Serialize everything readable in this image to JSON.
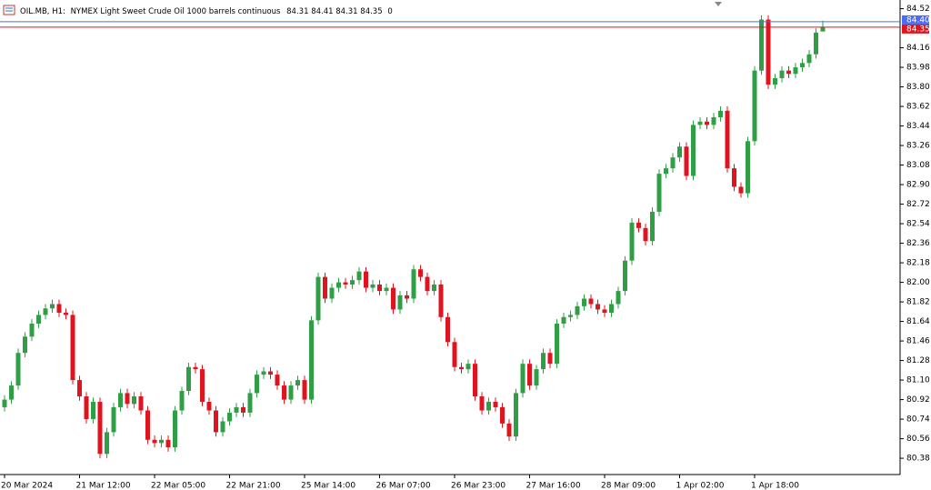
{
  "header": {
    "symbol": "OIL.MB, H1:",
    "description": "NYMEX Light Sweet Crude Oil 1000 barrels continuous",
    "tick_volume": 0
  },
  "chart_data": {
    "type": "candlestick",
    "bull_color": "#2f9e44",
    "bear_color": "#e0141e",
    "ylim": [
      80.23,
      84.6
    ],
    "yticks": [
      {
        "value": 84.52,
        "label": "84.52"
      },
      {
        "value": 84.16,
        "label": "84.16"
      },
      {
        "value": 83.98,
        "label": "83.98"
      },
      {
        "value": 83.8,
        "label": "83.80"
      },
      {
        "value": 83.62,
        "label": "83.62"
      },
      {
        "value": 83.44,
        "label": "83.44"
      },
      {
        "value": 83.26,
        "label": "83.26"
      },
      {
        "value": 83.08,
        "label": "83.08"
      },
      {
        "value": 82.9,
        "label": "82.90"
      },
      {
        "value": 82.72,
        "label": "82.72"
      },
      {
        "value": 82.54,
        "label": "82.54"
      },
      {
        "value": 82.36,
        "label": "82.36"
      },
      {
        "value": 82.18,
        "label": "82.18"
      },
      {
        "value": 82,
        "label": "82.00"
      },
      {
        "value": 81.82,
        "label": "81.82"
      },
      {
        "value": 81.64,
        "label": "81.64"
      },
      {
        "value": 81.46,
        "label": "81.46"
      },
      {
        "value": 81.28,
        "label": "81.28"
      },
      {
        "value": 81.1,
        "label": "81.10"
      },
      {
        "value": 80.92,
        "label": "80.92"
      },
      {
        "value": 80.74,
        "label": "80.74"
      },
      {
        "value": 80.56,
        "label": "80.56"
      },
      {
        "value": 80.38,
        "label": "80.38"
      }
    ],
    "ask": {
      "value": 84.4,
      "label": "84.40",
      "color": "#4a6cf7"
    },
    "bid": {
      "value": 84.35,
      "label": "84.35",
      "color": "#e0141e"
    },
    "categories": [
      "20 Mar 2024",
      null,
      null,
      null,
      null,
      null,
      null,
      null,
      null,
      null,
      null,
      "21 Mar 12:00",
      null,
      null,
      null,
      null,
      null,
      null,
      null,
      null,
      null,
      null,
      "22 Mar 05:00",
      null,
      null,
      null,
      null,
      null,
      null,
      null,
      null,
      null,
      null,
      "22 Mar 21:00",
      null,
      null,
      null,
      null,
      null,
      null,
      null,
      null,
      null,
      null,
      "25 Mar 14:00",
      null,
      null,
      null,
      null,
      null,
      null,
      null,
      null,
      null,
      null,
      "26 Mar 07:00",
      null,
      null,
      null,
      null,
      null,
      null,
      null,
      null,
      null,
      null,
      "26 Mar 23:00",
      null,
      null,
      null,
      null,
      null,
      null,
      null,
      null,
      null,
      null,
      "27 Mar 16:00",
      null,
      null,
      null,
      null,
      null,
      null,
      null,
      null,
      null,
      null,
      "28 Mar 09:00",
      null,
      null,
      null,
      null,
      null,
      null,
      null,
      null,
      null,
      null,
      "1 Apr 02:00",
      null,
      null,
      null,
      null,
      null,
      null,
      null,
      null,
      null,
      null,
      "1 Apr 18:00",
      null,
      null,
      null,
      null,
      null,
      null,
      null,
      null,
      null,
      null
    ],
    "open": [
      80.85,
      80.92,
      81.05,
      81.35,
      81.5,
      81.62,
      81.7,
      81.76,
      81.8,
      81.72,
      81.7,
      81.1,
      80.95,
      80.74,
      80.9,
      80.42,
      80.62,
      80.85,
      80.98,
      80.88,
      80.95,
      80.82,
      80.55,
      80.52,
      80.55,
      80.48,
      80.82,
      81.0,
      81.22,
      81.2,
      80.9,
      80.82,
      80.62,
      80.72,
      80.8,
      80.85,
      80.8,
      80.98,
      81.15,
      81.18,
      81.15,
      81.05,
      80.92,
      81.05,
      81.1,
      80.92,
      81.65,
      82.05,
      81.85,
      81.95,
      82.0,
      81.98,
      82.02,
      82.1,
      81.95,
      81.98,
      81.92,
      81.95,
      81.75,
      81.88,
      81.85,
      82.12,
      82.05,
      81.92,
      81.98,
      81.68,
      81.45,
      81.22,
      81.2,
      81.25,
      80.95,
      80.82,
      80.9,
      80.85,
      80.7,
      80.58,
      80.98,
      81.25,
      81.05,
      81.2,
      81.35,
      81.25,
      81.62,
      81.68,
      81.7,
      81.78,
      81.85,
      81.8,
      81.75,
      81.72,
      81.8,
      81.92,
      82.2,
      82.55,
      82.5,
      82.38,
      82.65,
      83.0,
      83.05,
      83.15,
      83.25,
      82.98,
      83.45,
      83.48,
      83.45,
      83.52,
      83.58,
      83.05,
      82.88,
      82.82,
      83.3,
      83.95,
      84.42,
      83.82,
      83.88,
      83.95,
      83.92,
      83.98,
      84.02,
      84.1,
      84.31
    ],
    "high": [
      80.96,
      81.09,
      81.39,
      81.54,
      81.66,
      81.74,
      81.8,
      81.84,
      81.84,
      81.76,
      81.74,
      81.14,
      80.99,
      80.94,
      80.94,
      80.66,
      80.89,
      81.02,
      81.02,
      80.99,
      80.99,
      80.86,
      80.59,
      80.59,
      80.59,
      80.86,
      81.04,
      81.26,
      81.26,
      81.24,
      80.94,
      80.86,
      80.76,
      80.84,
      80.89,
      80.89,
      81.02,
      81.19,
      81.22,
      81.22,
      81.19,
      81.09,
      81.09,
      81.14,
      81.14,
      81.69,
      82.09,
      82.09,
      81.99,
      82.04,
      82.04,
      82.06,
      82.14,
      82.14,
      82.02,
      82.02,
      81.99,
      81.99,
      81.92,
      81.92,
      82.16,
      82.16,
      82.09,
      82.02,
      82.02,
      81.72,
      81.49,
      81.26,
      81.29,
      81.29,
      80.99,
      80.94,
      80.94,
      80.89,
      80.74,
      81.02,
      81.29,
      81.29,
      81.24,
      81.39,
      81.39,
      81.66,
      81.72,
      81.74,
      81.82,
      81.89,
      81.89,
      81.84,
      81.79,
      81.84,
      81.96,
      82.24,
      82.59,
      82.59,
      82.54,
      82.69,
      83.04,
      83.09,
      83.19,
      83.29,
      83.29,
      83.49,
      83.52,
      83.52,
      83.56,
      83.62,
      83.62,
      83.09,
      82.92,
      83.34,
      83.99,
      84.46,
      84.46,
      83.92,
      83.99,
      83.99,
      84.02,
      84.06,
      84.14,
      84.34,
      84.41
    ],
    "low": [
      80.81,
      80.88,
      81.01,
      81.31,
      81.46,
      81.58,
      81.66,
      81.72,
      81.68,
      81.66,
      81.06,
      80.91,
      80.7,
      80.7,
      80.38,
      80.38,
      80.58,
      80.81,
      80.84,
      80.84,
      80.78,
      80.51,
      80.48,
      80.48,
      80.44,
      80.44,
      80.78,
      80.96,
      81.16,
      80.86,
      80.78,
      80.58,
      80.58,
      80.68,
      80.76,
      80.76,
      80.76,
      80.94,
      81.11,
      81.11,
      81.01,
      80.88,
      80.88,
      81.01,
      80.88,
      80.88,
      81.61,
      81.81,
      81.81,
      81.91,
      81.94,
      81.94,
      81.98,
      81.91,
      81.91,
      81.88,
      81.88,
      81.71,
      81.71,
      81.81,
      81.81,
      82.01,
      81.88,
      81.88,
      81.64,
      81.41,
      81.18,
      81.16,
      81.16,
      80.91,
      80.78,
      80.78,
      80.81,
      80.66,
      80.54,
      80.54,
      80.94,
      81.01,
      81.01,
      81.16,
      81.21,
      81.21,
      81.58,
      81.64,
      81.66,
      81.74,
      81.76,
      81.71,
      81.68,
      81.68,
      81.76,
      81.88,
      82.16,
      82.46,
      82.34,
      82.34,
      82.61,
      82.96,
      83.01,
      83.11,
      82.94,
      82.94,
      83.41,
      83.41,
      83.41,
      83.48,
      83.01,
      82.84,
      82.78,
      82.78,
      83.26,
      83.91,
      83.78,
      83.78,
      83.84,
      83.88,
      83.88,
      83.94,
      83.98,
      84.06,
      84.31
    ],
    "close": [
      80.92,
      81.05,
      81.35,
      81.5,
      81.62,
      81.7,
      81.76,
      81.8,
      81.72,
      81.7,
      81.1,
      80.95,
      80.74,
      80.9,
      80.42,
      80.62,
      80.85,
      80.98,
      80.88,
      80.95,
      80.82,
      80.55,
      80.52,
      80.55,
      80.48,
      80.82,
      81.0,
      81.22,
      81.2,
      80.9,
      80.82,
      80.62,
      80.72,
      80.8,
      80.85,
      80.8,
      80.98,
      81.15,
      81.18,
      81.15,
      81.05,
      80.92,
      81.05,
      81.1,
      80.92,
      81.65,
      82.05,
      81.85,
      81.95,
      82.0,
      81.98,
      82.02,
      82.1,
      81.95,
      81.98,
      81.92,
      81.95,
      81.75,
      81.88,
      81.85,
      82.12,
      82.05,
      81.92,
      81.98,
      81.68,
      81.45,
      81.22,
      81.2,
      81.25,
      80.95,
      80.82,
      80.9,
      80.85,
      80.7,
      80.58,
      80.98,
      81.25,
      81.05,
      81.2,
      81.35,
      81.25,
      81.62,
      81.68,
      81.7,
      81.78,
      81.85,
      81.8,
      81.75,
      81.72,
      81.8,
      81.92,
      82.2,
      82.55,
      82.5,
      82.38,
      82.65,
      83.0,
      83.05,
      83.15,
      83.25,
      82.98,
      83.45,
      83.48,
      83.45,
      83.52,
      83.58,
      83.05,
      82.88,
      82.82,
      83.3,
      83.95,
      84.42,
      83.82,
      83.88,
      83.95,
      83.92,
      83.98,
      84.02,
      84.1,
      84.3,
      84.35
    ]
  }
}
